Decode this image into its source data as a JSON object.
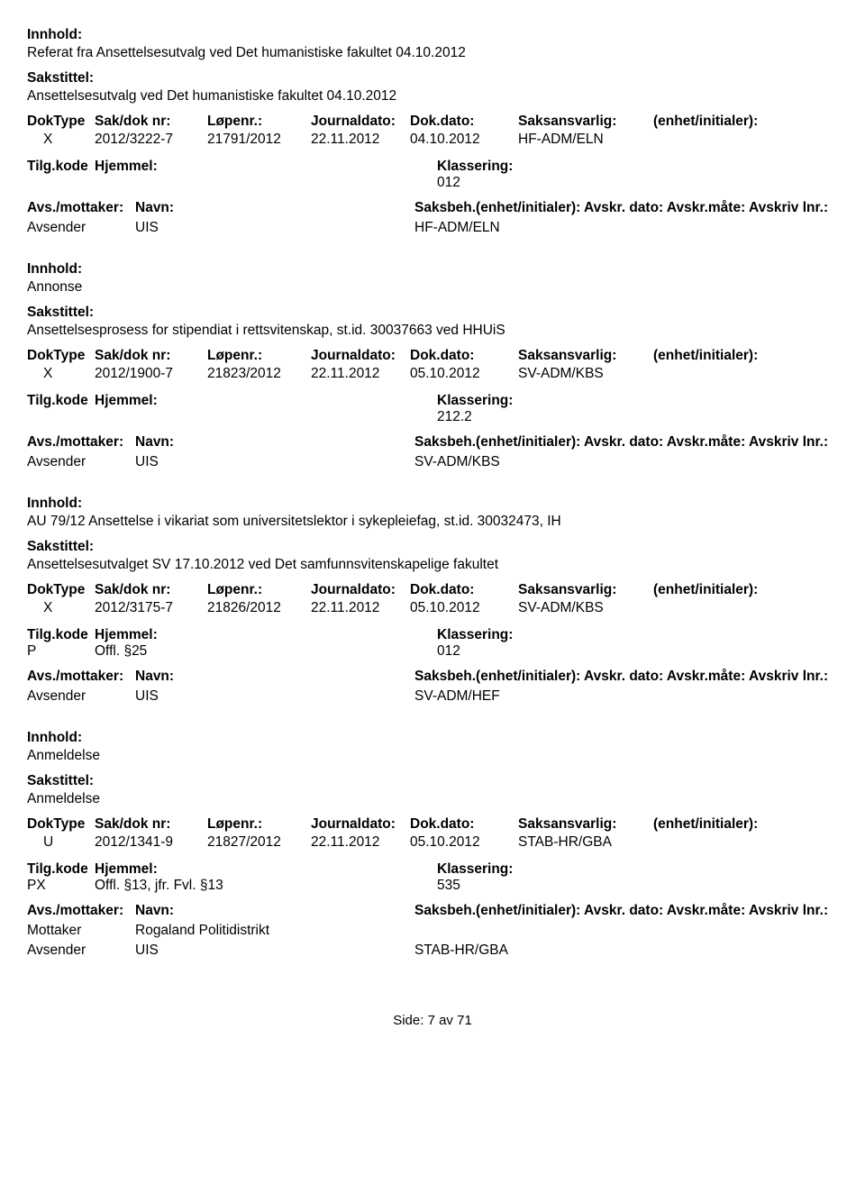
{
  "labels": {
    "innhold": "Innhold:",
    "sakstittel": "Sakstittel:",
    "doktype": "DokType",
    "sakdok": "Sak/dok nr:",
    "lopenr": "Løpenr.:",
    "journaldato": "Journaldato:",
    "dokdato": "Dok.dato:",
    "saksansvarlig": "Saksansvarlig:",
    "enhet": "(enhet/initialer):",
    "tilgkode": "Tilg.kode",
    "hjemmel": "Hjemmel:",
    "klassering": "Klassering:",
    "avsmottaker": "Avs./mottaker:",
    "navn": "Navn:",
    "saksbeh_row": "Saksbeh.(enhet/initialer): Avskr. dato: Avskr.måte: Avskriv lnr.:"
  },
  "records": [
    {
      "innhold": "Referat fra Ansettelsesutvalg ved Det humanistiske fakultet 04.10.2012",
      "sakstittel": "Ansettelsesutvalg ved Det humanistiske fakultet 04.10.2012",
      "doktype": "X",
      "sakdok": "2012/3222-7",
      "lopenr": "21791/2012",
      "journaldato": "22.11.2012",
      "dokdato": "04.10.2012",
      "saksansvarlig": "HF-ADM/ELN",
      "tilgcode": "",
      "hjemmel": "",
      "klassering": "012",
      "parties": [
        {
          "role": "Avsender",
          "name": "UIS",
          "saksbeh": "HF-ADM/ELN"
        }
      ]
    },
    {
      "innhold": "Annonse",
      "sakstittel": "Ansettelsesprosess for stipendiat i rettsvitenskap, st.id. 30037663 ved HHUiS",
      "doktype": "X",
      "sakdok": "2012/1900-7",
      "lopenr": "21823/2012",
      "journaldato": "22.11.2012",
      "dokdato": "05.10.2012",
      "saksansvarlig": "SV-ADM/KBS",
      "tilgcode": "",
      "hjemmel": "",
      "klassering": "212.2",
      "parties": [
        {
          "role": "Avsender",
          "name": "UIS",
          "saksbeh": "SV-ADM/KBS"
        }
      ]
    },
    {
      "innhold": "AU 79/12 Ansettelse i vikariat som universitetslektor i sykepleiefag, st.id. 30032473, IH",
      "sakstittel": "Ansettelsesutvalget SV 17.10.2012 ved Det samfunnsvitenskapelige fakultet",
      "doktype": "X",
      "sakdok": "2012/3175-7",
      "lopenr": "21826/2012",
      "journaldato": "22.11.2012",
      "dokdato": "05.10.2012",
      "saksansvarlig": "SV-ADM/KBS",
      "tilgcode": "P",
      "hjemmel": "Offl. §25",
      "klassering": "012",
      "parties": [
        {
          "role": "Avsender",
          "name": "UIS",
          "saksbeh": "SV-ADM/HEF"
        }
      ]
    },
    {
      "innhold": "Anmeldelse",
      "sakstittel": "Anmeldelse",
      "doktype": "U",
      "sakdok": "2012/1341-9",
      "lopenr": "21827/2012",
      "journaldato": "22.11.2012",
      "dokdato": "05.10.2012",
      "saksansvarlig": "STAB-HR/GBA",
      "tilgcode": "PX",
      "hjemmel": "Offl. §13, jfr. Fvl. §13",
      "klassering": "535",
      "parties": [
        {
          "role": "Mottaker",
          "name": "Rogaland Politidistrikt",
          "saksbeh": ""
        },
        {
          "role": "Avsender",
          "name": "UIS",
          "saksbeh": "STAB-HR/GBA"
        }
      ]
    }
  ],
  "footer": "Side: 7 av 71"
}
